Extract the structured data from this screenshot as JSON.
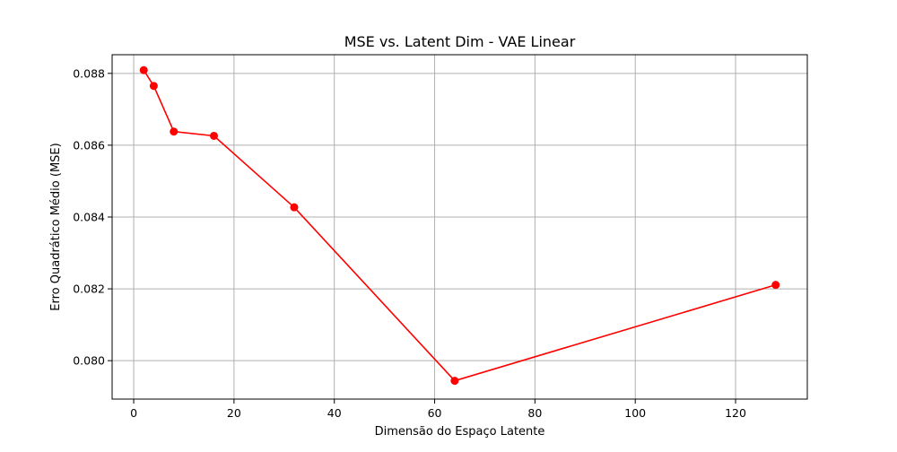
{
  "chart_data": {
    "type": "line",
    "title": "MSE vs. Latent Dim - VAE Linear",
    "xlabel": "Dimensão do Espaço Latente",
    "ylabel": "Erro Quadrático Médio (MSE)",
    "xlim": [
      -4.3,
      134.3
    ],
    "ylim": [
      0.07893,
      0.08852
    ],
    "xticks": [
      0,
      20,
      40,
      60,
      80,
      100,
      120
    ],
    "xtick_labels": [
      "0",
      "20",
      "40",
      "60",
      "80",
      "100",
      "120"
    ],
    "yticks": [
      0.08,
      0.082,
      0.084,
      0.086,
      0.088
    ],
    "ytick_labels": [
      "0.080",
      "0.082",
      "0.084",
      "0.086",
      "0.088"
    ],
    "grid": true,
    "series": [
      {
        "color": "#ff0000",
        "marker": "circle",
        "x": [
          2,
          4,
          8,
          16,
          32,
          64,
          128
        ],
        "y": [
          0.08809,
          0.08765,
          0.08638,
          0.08626,
          0.08427,
          0.07944,
          0.08211
        ]
      }
    ],
    "colors": {
      "line": "#ff0000",
      "grid": "#b0b0b0",
      "axes": "#000000"
    }
  }
}
